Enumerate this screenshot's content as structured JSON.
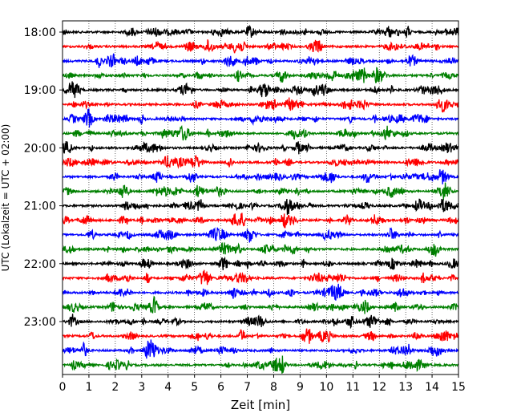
{
  "chart_data": {
    "type": "line",
    "title": "",
    "xlabel": "Zeit  [min]",
    "ylabel": "UTC (Lokalzeit = UTC + 02:00)",
    "xlim": [
      0,
      15
    ],
    "x_ticks": [
      "0",
      "1",
      "2",
      "3",
      "4",
      "5",
      "6",
      "7",
      "8",
      "9",
      "10",
      "11",
      "12",
      "13",
      "14",
      "15"
    ],
    "y_tick_labels": [
      "18:00",
      "19:00",
      "20:00",
      "21:00",
      "22:00",
      "23:00"
    ],
    "grid": "vertical dotted at each minute",
    "trace_interval_minutes": 15,
    "trace_color_cycle": [
      "#000000",
      "#ff0000",
      "#0000ff",
      "#008000"
    ],
    "series": [
      {
        "start": "18:00",
        "color": "#000000"
      },
      {
        "start": "18:15",
        "color": "#ff0000"
      },
      {
        "start": "18:30",
        "color": "#0000ff"
      },
      {
        "start": "18:45",
        "color": "#008000"
      },
      {
        "start": "19:00",
        "color": "#000000"
      },
      {
        "start": "19:15",
        "color": "#ff0000"
      },
      {
        "start": "19:30",
        "color": "#0000ff"
      },
      {
        "start": "19:45",
        "color": "#008000"
      },
      {
        "start": "20:00",
        "color": "#000000"
      },
      {
        "start": "20:15",
        "color": "#ff0000"
      },
      {
        "start": "20:30",
        "color": "#0000ff"
      },
      {
        "start": "20:45",
        "color": "#008000"
      },
      {
        "start": "21:00",
        "color": "#000000"
      },
      {
        "start": "21:15",
        "color": "#ff0000"
      },
      {
        "start": "21:30",
        "color": "#0000ff"
      },
      {
        "start": "21:45",
        "color": "#008000"
      },
      {
        "start": "22:00",
        "color": "#000000"
      },
      {
        "start": "22:15",
        "color": "#ff0000"
      },
      {
        "start": "22:30",
        "color": "#0000ff"
      },
      {
        "start": "22:45",
        "color": "#008000"
      },
      {
        "start": "23:00",
        "color": "#000000"
      },
      {
        "start": "23:15",
        "color": "#ff0000"
      },
      {
        "start": "23:30",
        "color": "#0000ff"
      },
      {
        "start": "23:45",
        "color": "#008000"
      }
    ]
  }
}
